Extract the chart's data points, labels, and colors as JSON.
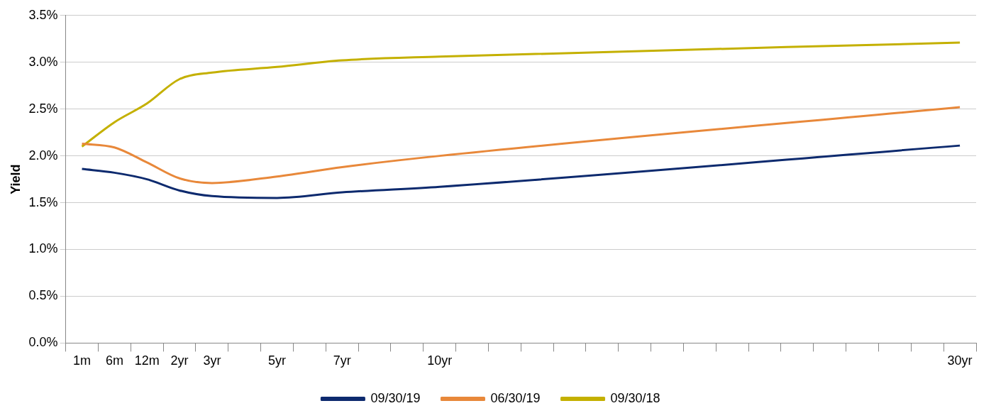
{
  "chart_data": {
    "type": "line",
    "ylabel": "Yield",
    "categories": [
      "1m",
      "6m",
      "12m",
      "2yr",
      "3yr",
      null,
      "5yr",
      null,
      "7yr",
      null,
      null,
      "10yr",
      null,
      null,
      null,
      null,
      null,
      null,
      null,
      null,
      null,
      null,
      null,
      null,
      null,
      null,
      null,
      "30yr"
    ],
    "series": [
      {
        "name": "09/30/19",
        "color": "#0d2a6e",
        "values": [
          1.86,
          1.82,
          1.75,
          1.63,
          1.57,
          null,
          1.55,
          null,
          1.61,
          null,
          null,
          1.67,
          null,
          null,
          null,
          null,
          null,
          null,
          null,
          null,
          null,
          null,
          null,
          null,
          null,
          null,
          null,
          2.11
        ]
      },
      {
        "name": "06/30/19",
        "color": "#e8883a",
        "values": [
          2.13,
          2.09,
          1.93,
          1.76,
          1.71,
          null,
          1.78,
          null,
          1.88,
          null,
          null,
          2.0,
          null,
          null,
          null,
          null,
          null,
          null,
          null,
          null,
          null,
          null,
          null,
          null,
          null,
          null,
          null,
          2.52
        ]
      },
      {
        "name": "09/30/18",
        "color": "#c4b000",
        "values": [
          2.1,
          2.36,
          2.56,
          2.82,
          2.89,
          null,
          2.95,
          null,
          3.02,
          null,
          null,
          3.06,
          null,
          null,
          null,
          null,
          null,
          null,
          null,
          null,
          null,
          null,
          null,
          null,
          null,
          null,
          null,
          3.21
        ]
      }
    ],
    "ylim": [
      0,
      3.5
    ],
    "yticks": [
      {
        "value": 0,
        "label": "0.0%"
      },
      {
        "value": 0.5,
        "label": "0.5%"
      },
      {
        "value": 1,
        "label": "1.0%"
      },
      {
        "value": 1.5,
        "label": "1.5%"
      },
      {
        "value": 2,
        "label": "2.0%"
      },
      {
        "value": 2.5,
        "label": "2.5%"
      },
      {
        "value": 3,
        "label": "3.0%"
      },
      {
        "value": 3.5,
        "label": "3.5%"
      }
    ],
    "grid": "y",
    "legend": "bottom",
    "marker": "none",
    "line_style": "solid"
  }
}
